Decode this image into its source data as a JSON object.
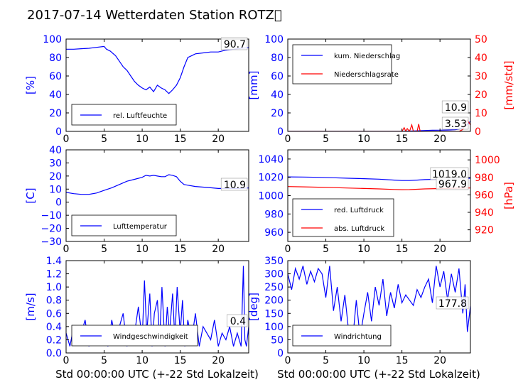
{
  "title": "2017-07-14 Wetterdaten Station ROTZ\u0000",
  "xlabel": "Std 00:00:00 UTC (+-22 Std Lokalzeit)",
  "colors": {
    "primary": "#0000ff",
    "secondary": "#ff0000",
    "axis": "#000000"
  },
  "chart_data": [
    {
      "type": "line",
      "ylabel": "[%]",
      "xlim": [
        0,
        24
      ],
      "ylim": [
        0,
        100
      ],
      "yticks": [
        "0",
        "20",
        "40",
        "60",
        "80",
        "100"
      ],
      "legend": "bottom-left",
      "annotations": [
        "90.7"
      ],
      "series": [
        {
          "name": "rel. Luftfeuchte",
          "color": "#0000ff",
          "x": [
            0,
            1,
            2,
            3,
            4,
            5,
            5.3,
            5.8,
            6.5,
            7,
            7.5,
            8,
            8.5,
            9,
            9.5,
            10,
            10.5,
            11,
            11.5,
            12,
            12.5,
            13,
            13.5,
            14,
            14.5,
            15,
            15.5,
            16,
            16.5,
            17,
            18,
            19,
            20,
            21,
            22,
            23,
            24
          ],
          "y": [
            89,
            89,
            89.5,
            90,
            91,
            92,
            89,
            87,
            82,
            76,
            70,
            66,
            60,
            54,
            50,
            47,
            45,
            48,
            43,
            50,
            47,
            45,
            41,
            45,
            50,
            58,
            70,
            80,
            82,
            84,
            85,
            86,
            86,
            88,
            89,
            90,
            90.7
          ]
        }
      ]
    },
    {
      "type": "line",
      "ylabel": "[mm]",
      "ylabel2": "[mm/std]",
      "xlim": [
        0,
        24
      ],
      "ylim": [
        0,
        100
      ],
      "ylim2": [
        0,
        50
      ],
      "yticks": [
        "0",
        "20",
        "40",
        "60",
        "80",
        "100"
      ],
      "yticks2": [
        "0",
        "10",
        "20",
        "30",
        "40",
        "50"
      ],
      "legend": "top-left",
      "annotations": [
        "10.9",
        "3.53"
      ],
      "series": [
        {
          "name": "kum. Niederschlag",
          "color": "#0000ff",
          "x": [
            0,
            15,
            16,
            17,
            18,
            19,
            20,
            21,
            22,
            22.5,
            23,
            23.5,
            24
          ],
          "y": [
            0,
            0,
            0.3,
            0.6,
            1,
            1.2,
            1.3,
            1.5,
            1.8,
            2.5,
            4,
            7,
            10.9
          ]
        },
        {
          "name": "Niederschlagsrate",
          "color": "#ff0000",
          "axis": "right",
          "x": [
            0,
            15,
            15.3,
            15.5,
            15.7,
            16,
            16.3,
            16.5,
            16.7,
            17,
            17.2,
            17.4,
            17.6,
            18,
            22.5,
            23,
            23.3,
            23.6,
            24
          ],
          "y": [
            0,
            0,
            2,
            0,
            1.5,
            0,
            3.5,
            0,
            0,
            0,
            4,
            0,
            0,
            0,
            0,
            1,
            4,
            6,
            3.53
          ]
        }
      ]
    },
    {
      "type": "line",
      "ylabel": "[C]",
      "xlim": [
        0,
        24
      ],
      "ylim": [
        -30,
        40
      ],
      "yticks": [
        "−30",
        "−20",
        "−10",
        "0",
        "10",
        "20",
        "30",
        "40"
      ],
      "legend": "bottom-left",
      "annotations": [
        "10.9"
      ],
      "series": [
        {
          "name": "Lufttemperatur",
          "color": "#0000ff",
          "x": [
            0,
            1,
            2,
            3,
            4,
            5,
            6,
            7,
            8,
            9,
            10,
            10.5,
            11,
            11.5,
            12,
            12.5,
            13,
            13.5,
            14,
            14.5,
            15,
            15.5,
            16,
            17,
            18,
            19,
            20,
            21,
            22,
            23,
            24
          ],
          "y": [
            7.5,
            6.5,
            6,
            6,
            7,
            9,
            11,
            13.5,
            16,
            17.5,
            19,
            20.5,
            20,
            20.5,
            20,
            19.5,
            19.5,
            21,
            20.5,
            19.5,
            16,
            13.5,
            13,
            12,
            11.5,
            11,
            10.5,
            10.5,
            10.5,
            10.5,
            10.9
          ]
        }
      ]
    },
    {
      "type": "line",
      "ylabel2": "[hPa]",
      "xlim": [
        0,
        24
      ],
      "ylim": [
        950,
        1050
      ],
      "ylim2": [
        906.7,
        1011.5
      ],
      "yticks": [
        "960",
        "980",
        "1000",
        "1020",
        "1040"
      ],
      "yticks2": [
        "920",
        "940",
        "960",
        "980",
        "1000"
      ],
      "legend": "bottom-left",
      "annotations": [
        "1019.0",
        "967.9"
      ],
      "series": [
        {
          "name": "red. Luftdruck",
          "color": "#0000ff",
          "x": [
            0,
            2,
            4,
            6,
            8,
            10,
            12,
            14,
            15,
            16,
            17,
            18,
            20,
            22,
            24
          ],
          "y": [
            1020.5,
            1020.3,
            1020,
            1019.5,
            1019,
            1018.5,
            1018,
            1017,
            1016.5,
            1016.5,
            1017,
            1017.5,
            1018,
            1018.5,
            1019
          ]
        },
        {
          "name": "abs. Luftdruck",
          "color": "#ff0000",
          "axis": "right",
          "x": [
            0,
            2,
            4,
            6,
            8,
            10,
            12,
            14,
            15,
            16,
            17,
            18,
            20,
            22,
            24
          ],
          "y": [
            969.5,
            969.2,
            968.8,
            968.3,
            967.8,
            967.3,
            966.8,
            966.2,
            965.9,
            966,
            966.4,
            966.8,
            967.2,
            967.6,
            967.9
          ]
        }
      ]
    },
    {
      "type": "line",
      "ylabel": "[m/s]",
      "xlim": [
        0,
        24
      ],
      "ylim": [
        0,
        1.4
      ],
      "yticks": [
        "0.0",
        "0.2",
        "0.4",
        "0.6",
        "0.8",
        "1.0",
        "1.2",
        "1.4"
      ],
      "legend": "bottom-left",
      "annotations": [
        "0.4"
      ],
      "series": [
        {
          "name": "Windgeschwindigkeit",
          "color": "#0000ff",
          "x": [
            0,
            0.5,
            1,
            1.5,
            2,
            2.5,
            3,
            3.5,
            4,
            4.5,
            5,
            5.5,
            6,
            6.5,
            7,
            7.5,
            8,
            8.5,
            9,
            9.5,
            10,
            10.3,
            10.6,
            11,
            11.3,
            11.6,
            12,
            12.3,
            12.6,
            13,
            13.3,
            13.6,
            14,
            14.3,
            14.6,
            15,
            15.3,
            15.6,
            16,
            16.5,
            17,
            17.5,
            18,
            18.5,
            19,
            19.5,
            20,
            20.5,
            21,
            21.5,
            22,
            22.5,
            23,
            23.3,
            23.5,
            23.7,
            24
          ],
          "y": [
            0.3,
            0.1,
            0.4,
            0.2,
            0.3,
            0.5,
            0.1,
            0.3,
            0.2,
            0.4,
            0.3,
            0.1,
            0.5,
            0.2,
            0.4,
            0.6,
            0.1,
            0.4,
            0.3,
            0.7,
            0.2,
            1.1,
            0.3,
            0.9,
            0.1,
            0.6,
            0.8,
            0.2,
            1.0,
            0.1,
            0.7,
            0.3,
            0.9,
            0.2,
            1.0,
            0.3,
            0.8,
            0.1,
            0.5,
            0.2,
            0.6,
            0.1,
            0.4,
            0.3,
            0.2,
            0.5,
            0.1,
            0.3,
            0.2,
            0.4,
            0.1,
            0.3,
            0.1,
            1.32,
            0.2,
            0.1,
            0.4
          ]
        }
      ]
    },
    {
      "type": "line",
      "ylabel": "[deg]",
      "xlim": [
        0,
        24
      ],
      "ylim": [
        0,
        350
      ],
      "yticks": [
        "0",
        "50",
        "100",
        "150",
        "200",
        "250",
        "300",
        "350"
      ],
      "legend": "bottom-left",
      "annotations": [
        "177.8"
      ],
      "series": [
        {
          "name": "Windrichtung",
          "color": "#0000ff",
          "x": [
            0,
            0.5,
            1,
            1.5,
            2,
            2.5,
            3,
            3.5,
            4,
            4.5,
            5,
            5.5,
            6,
            6.5,
            7,
            7.5,
            8,
            8.5,
            9,
            9.5,
            10,
            10.5,
            11,
            11.5,
            12,
            12.5,
            13,
            13.5,
            14,
            14.5,
            15,
            15.5,
            16,
            16.5,
            17,
            17.5,
            18,
            18.5,
            19,
            19.5,
            20,
            20.5,
            21,
            21.5,
            22,
            22.5,
            23,
            23.3,
            23.6,
            24
          ],
          "y": [
            300,
            240,
            320,
            280,
            330,
            260,
            310,
            270,
            320,
            300,
            210,
            330,
            160,
            250,
            120,
            220,
            80,
            40,
            200,
            60,
            150,
            230,
            120,
            250,
            180,
            280,
            140,
            230,
            170,
            260,
            190,
            220,
            200,
            180,
            240,
            210,
            250,
            280,
            190,
            330,
            250,
            310,
            200,
            300,
            230,
            320,
            150,
            260,
            80,
            177.8
          ]
        }
      ]
    }
  ]
}
